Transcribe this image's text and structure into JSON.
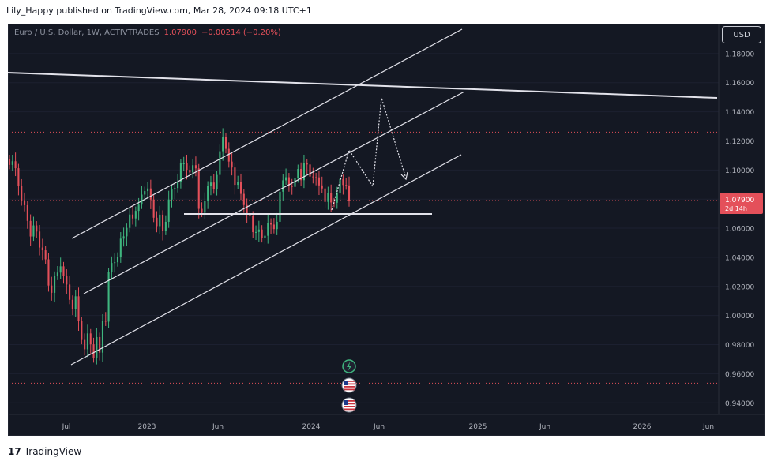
{
  "header": {
    "publisher": "Lily_Happy published on TradingView.com, Mar 28, 2024 09:18 UTC+1"
  },
  "symbol": {
    "name": "Euro / U.S. Dollar, 1W, ACTIVTRADES",
    "price": "1.07900",
    "change": "−0.00214 (−0.20%)"
  },
  "currency_button": "USD",
  "footer": {
    "logo_mark": "17",
    "logo_text": "TradingView"
  },
  "colors": {
    "background": "#141823",
    "up": "#3fb67f",
    "down": "#e4505a",
    "channel": "#e2e2ea",
    "price_tag": "#e4505a"
  },
  "icons": [
    "lightning-icon",
    "us-flag-icon",
    "us-flag-icon"
  ],
  "chart_data": {
    "type": "candlestick",
    "title": "Euro / U.S. Dollar, 1W, ACTIVTRADES",
    "x_tick_labels": [
      "Jul",
      "2023",
      "Jun",
      "2024",
      "Jun",
      "2025",
      "Jun",
      "2026",
      "Jun"
    ],
    "y_tick_labels": [
      "1.18000",
      "1.16000",
      "1.14000",
      "1.12000",
      "1.10000",
      "1.08000",
      "1.06000",
      "1.04000",
      "1.02000",
      "1.00000",
      "0.98000",
      "0.96000",
      "0.94000"
    ],
    "y_ticks": [
      1.18,
      1.16,
      1.14,
      1.12,
      1.1,
      1.08,
      1.06,
      1.04,
      1.02,
      1.0,
      0.98,
      0.96,
      0.94
    ],
    "ylim": [
      0.932,
      1.2
    ],
    "current_price": 1.079,
    "current_price_label": "1.07900",
    "countdown_label": "2d 14h",
    "closes": [
      1.1035,
      1.106,
      1.1012,
      1.0892,
      1.0785,
      1.0758,
      1.065,
      1.0543,
      1.0619,
      1.0577,
      1.0467,
      1.0448,
      1.0386,
      1.0206,
      1.0156,
      1.0273,
      1.0295,
      1.0338,
      1.0273,
      1.0213,
      1.0108,
      1.0045,
      1.0132,
      0.9961,
      0.9832,
      0.9768,
      0.9877,
      0.9802,
      0.9706,
      0.9852,
      0.9745,
      0.9964,
      0.9958,
      1.0298,
      1.0361,
      1.0366,
      1.0404,
      1.0528,
      1.0544,
      1.0602,
      1.0694,
      1.0667,
      1.0719,
      1.0762,
      1.0831,
      1.0855,
      1.0873,
      1.0797,
      1.0672,
      1.0614,
      1.0693,
      1.0582,
      1.0644,
      1.0797,
      1.0866,
      1.0876,
      1.0915,
      1.1045,
      1.1045,
      1.1001,
      1.0983,
      1.1033,
      1.1011,
      1.0733,
      1.0706,
      1.0786,
      1.0893,
      1.0914,
      1.0867,
      1.0966,
      1.1129,
      1.1227,
      1.1145,
      1.1058,
      1.1017,
      1.0898,
      1.0915,
      1.0836,
      1.0759,
      1.0703,
      1.0687,
      1.0573,
      1.0574,
      1.0591,
      1.0532,
      1.0548,
      1.0638,
      1.0625,
      1.0594,
      1.0644,
      1.0851,
      1.0929,
      1.095,
      1.0893,
      1.0884,
      1.0943,
      1.1007,
      1.093,
      1.1045,
      1.1038,
      1.0955,
      1.095,
      1.0949,
      1.0894,
      1.0873,
      1.0781,
      1.084,
      1.0777,
      1.0775,
      1.0839,
      1.0938,
      1.0897,
      1.0894,
      1.079
    ]
  }
}
